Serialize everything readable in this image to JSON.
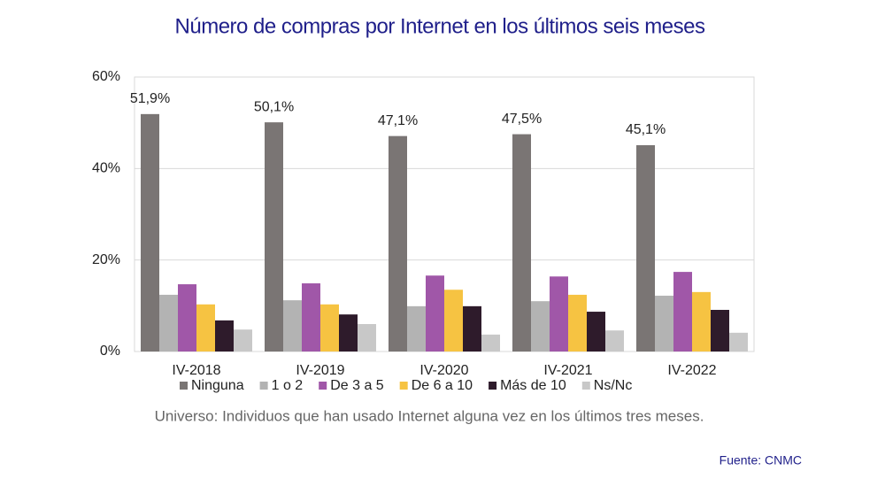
{
  "chart_data": {
    "type": "bar",
    "title": "Número de compras por Internet en los últimos seis meses",
    "note": "Universo: Individuos que han usado Internet alguna vez en los últimos tres meses.",
    "source": "Fuente:  CNMC",
    "categories": [
      "IV-2018",
      "IV-2019",
      "IV-2020",
      "IV-2021",
      "IV-2022"
    ],
    "series": [
      {
        "name": "Ninguna",
        "color": "#7a7574",
        "values": [
          51.9,
          50.1,
          47.1,
          47.5,
          45.1
        ],
        "value_labels": [
          "51,9%",
          "50,1%",
          "47,1%",
          "47,5%",
          "45,1%"
        ]
      },
      {
        "name": "1 o 2",
        "color": "#b3b3b3",
        "values": [
          12.4,
          11.2,
          9.9,
          11.0,
          12.2
        ]
      },
      {
        "name": "De 3 a 5",
        "color": "#a057a8",
        "values": [
          14.7,
          14.9,
          16.6,
          16.4,
          17.4
        ]
      },
      {
        "name": "De 6 a 10",
        "color": "#f6c342",
        "values": [
          10.3,
          10.3,
          13.5,
          12.4,
          13.0
        ]
      },
      {
        "name": "Más de 10",
        "color": "#2e1b2b",
        "values": [
          6.8,
          8.1,
          9.9,
          8.7,
          9.1
        ]
      },
      {
        "name": "Ns/Nc",
        "color": "#c8c8c8",
        "values": [
          4.8,
          6.0,
          3.7,
          4.6,
          4.1
        ]
      }
    ],
    "ylim": [
      0,
      60
    ],
    "yticks": [
      {
        "value": 0,
        "label": "0%"
      },
      {
        "value": 20,
        "label": "20%"
      },
      {
        "value": 40,
        "label": "40%"
      },
      {
        "value": 60,
        "label": "60%"
      }
    ],
    "grid": true
  }
}
